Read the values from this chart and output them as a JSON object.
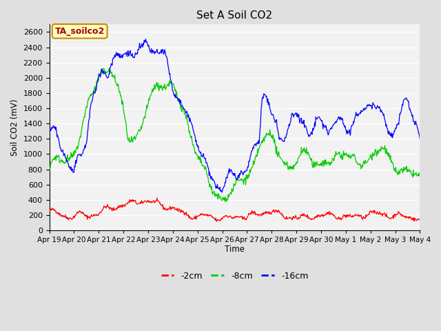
{
  "title": "Set A Soil CO2",
  "ylabel": "Soil CO2 (mV)",
  "xlabel": "Time",
  "annotation_label": "TA_soilco2",
  "annotation_bg": "#FFFFC0",
  "annotation_border": "#CC8800",
  "ylim": [
    0,
    2700
  ],
  "yticks": [
    0,
    200,
    400,
    600,
    800,
    1000,
    1200,
    1400,
    1600,
    1800,
    2000,
    2200,
    2400,
    2600
  ],
  "line_colors": {
    "red": "#FF0000",
    "green": "#00CC00",
    "blue": "#0000FF"
  },
  "legend": [
    {
      "label": "-2cm",
      "color": "#FF0000"
    },
    {
      "label": "-8cm",
      "color": "#00CC00"
    },
    {
      "label": "-16cm",
      "color": "#0000FF"
    }
  ],
  "fig_bg_color": "#E0E0E0",
  "plot_bg": "#F2F2F2",
  "xtick_labels": [
    "Apr 19",
    "Apr 20",
    "Apr 21",
    "Apr 22",
    "Apr 23",
    "Apr 24",
    "Apr 25",
    "Apr 26",
    "Apr 27",
    "Apr 28",
    "Apr 29",
    "Apr 30",
    "May 1",
    "May 2",
    "May 3",
    "May 4"
  ],
  "xtick_positions": [
    0,
    1,
    2,
    3,
    4,
    5,
    6,
    7,
    8,
    9,
    10,
    11,
    12,
    13,
    14,
    15
  ]
}
